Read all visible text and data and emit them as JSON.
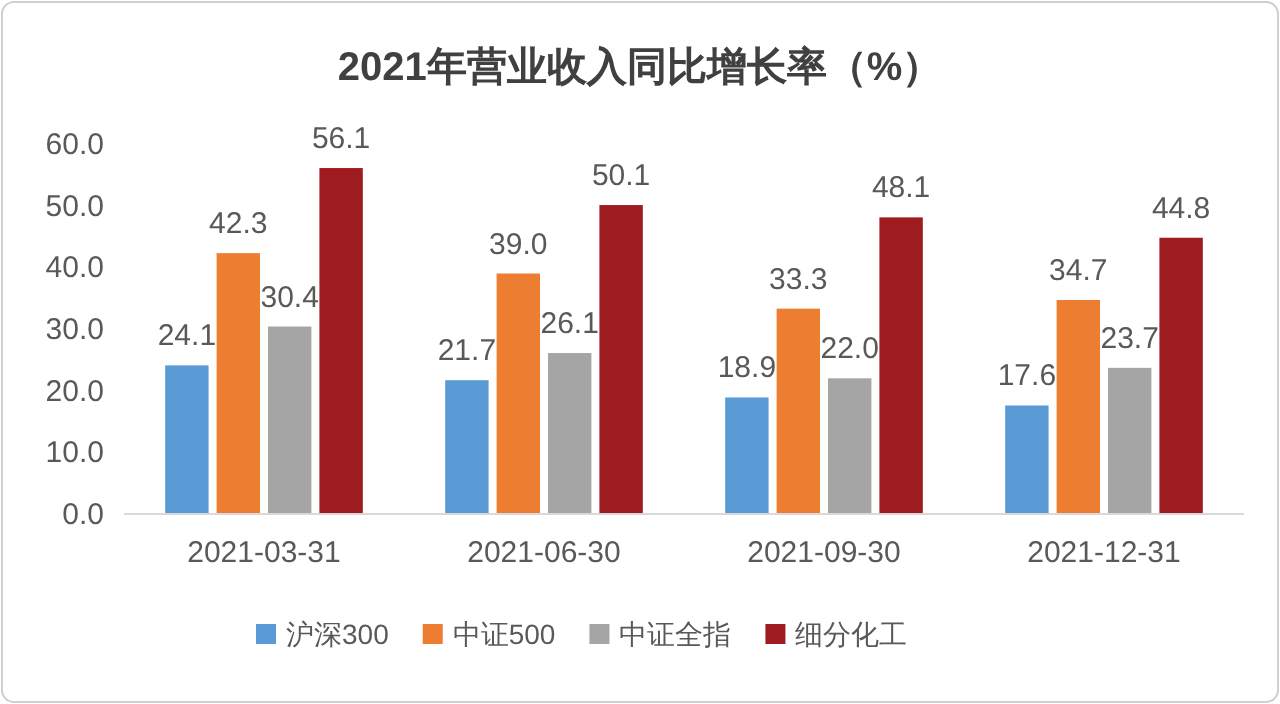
{
  "chart_data": {
    "type": "bar",
    "title": "2021年营业收入同比增长率（%）",
    "categories": [
      "2021-03-31",
      "2021-06-30",
      "2021-09-30",
      "2021-12-31"
    ],
    "series": [
      {
        "name": "沪深300",
        "color": "#5b9bd5",
        "values": [
          24.1,
          21.7,
          18.9,
          17.6
        ],
        "value_labels": [
          "24.1",
          "21.7",
          "18.9",
          "17.6"
        ]
      },
      {
        "name": "中证500",
        "color": "#ed7d31",
        "values": [
          42.3,
          39.0,
          33.3,
          34.7
        ],
        "value_labels": [
          "42.3",
          "39.0",
          "33.3",
          "34.7"
        ]
      },
      {
        "name": "中证全指",
        "color": "#a5a5a5",
        "values": [
          30.4,
          26.1,
          22.0,
          23.7
        ],
        "value_labels": [
          "30.4",
          "26.1",
          "22.0",
          "23.7"
        ]
      },
      {
        "name": "细分化工",
        "color": "#9e1b20",
        "values": [
          56.1,
          50.1,
          48.1,
          44.8
        ],
        "value_labels": [
          "56.1",
          "50.1",
          "48.1",
          "44.8"
        ]
      }
    ],
    "ylim": [
      0,
      60
    ],
    "yticks": [
      {
        "value": 0,
        "label": "0.0"
      },
      {
        "value": 10,
        "label": "10.0"
      },
      {
        "value": 20,
        "label": "20.0"
      },
      {
        "value": 30,
        "label": "30.0"
      },
      {
        "value": 40,
        "label": "40.0"
      },
      {
        "value": 50,
        "label": "50.0"
      },
      {
        "value": 60,
        "label": "60.0"
      }
    ],
    "legend": "bottom"
  }
}
